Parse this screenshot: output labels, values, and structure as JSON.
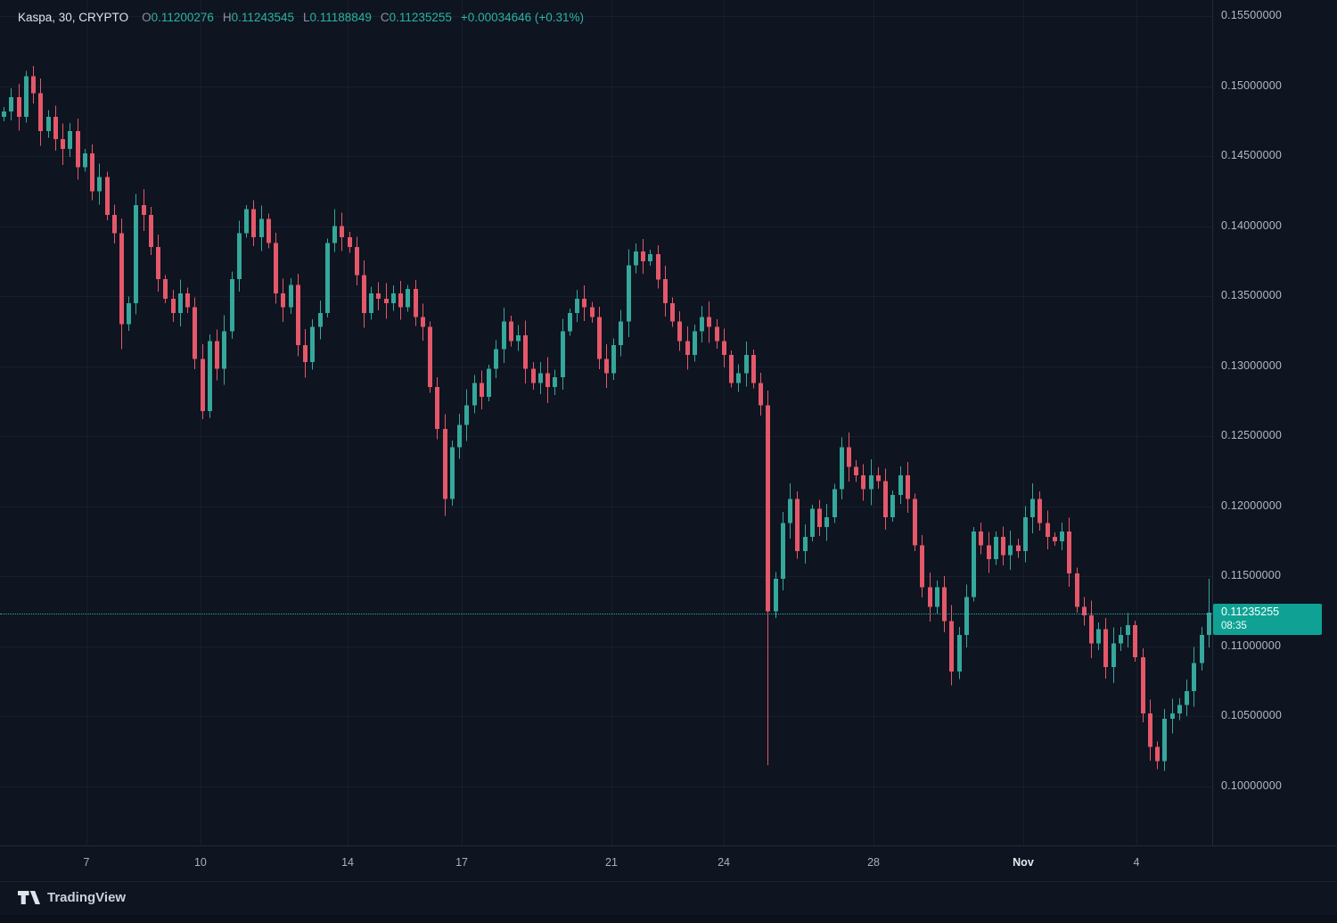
{
  "legend": {
    "title": "Kaspa, 30, CRYPTO",
    "o_label": "O",
    "o_value": "0.11200276",
    "h_label": "H",
    "h_value": "0.11243545",
    "l_label": "L",
    "l_value": "0.11188849",
    "c_label": "C",
    "c_value": "0.11235255",
    "change": "+0.00034646 (+0.31%)"
  },
  "current_price": {
    "label": "0.11235255",
    "value": 0.11235255,
    "countdown": "08:35"
  },
  "footer": {
    "brand": "TradingView"
  },
  "colors": {
    "up": "#35a79b",
    "down": "#e4586a",
    "teal": "#2bb3a3",
    "badge": "#0fa294",
    "grid": "rgba(151,166,191,0.08)",
    "axis_text": "#b2b8c5"
  },
  "chart_data": {
    "type": "candlestick",
    "symbol": "Kaspa",
    "interval": "30",
    "exchange": "CRYPTO",
    "title": "Kaspa, 30, CRYPTO",
    "ylim": [
      0.09577,
      0.15615
    ],
    "y_ticks": [
      "0.15500000",
      "0.15000000",
      "0.14500000",
      "0.14000000",
      "0.13500000",
      "0.13000000",
      "0.12500000",
      "0.12000000",
      "0.11500000",
      "0.11000000",
      "0.10500000",
      "0.10000000"
    ],
    "x_ticks": [
      {
        "label": "7",
        "pos": 0.0713
      },
      {
        "label": "10",
        "pos": 0.1654
      },
      {
        "label": "14",
        "pos": 0.2868
      },
      {
        "label": "17",
        "pos": 0.3809
      },
      {
        "label": "21",
        "pos": 0.5044
      },
      {
        "label": "24",
        "pos": 0.5971
      },
      {
        "label": "28",
        "pos": 0.7206
      },
      {
        "label": "Nov",
        "pos": 0.8441,
        "emphasis": true
      },
      {
        "label": "4",
        "pos": 0.9375
      }
    ],
    "last_price": 0.11235255,
    "first_open": 0.1478,
    "wick": 0.0009,
    "closes": [
      0.1482,
      0.1492,
      0.1478,
      0.1507,
      0.1495,
      0.1468,
      0.1478,
      0.1462,
      0.1455,
      0.1468,
      0.1442,
      0.1452,
      0.1425,
      0.1435,
      0.1408,
      0.1395,
      0.133,
      0.1345,
      0.1415,
      0.1408,
      0.1385,
      0.1362,
      0.1348,
      0.1338,
      0.1352,
      0.1342,
      0.1305,
      0.1268,
      0.1318,
      0.1298,
      0.1325,
      0.1362,
      0.1395,
      0.1412,
      0.1392,
      0.1405,
      0.1388,
      0.1352,
      0.1342,
      0.1358,
      0.1315,
      0.1303,
      0.1328,
      0.1338,
      0.1388,
      0.14,
      0.1392,
      0.1385,
      0.1365,
      0.1338,
      0.1352,
      0.1348,
      0.1345,
      0.1352,
      0.1342,
      0.1355,
      0.1335,
      0.1328,
      0.1285,
      0.1255,
      0.1205,
      0.1242,
      0.1258,
      0.1272,
      0.1288,
      0.1278,
      0.1298,
      0.1312,
      0.1332,
      0.1318,
      0.1322,
      0.1298,
      0.1288,
      0.1295,
      0.1285,
      0.1292,
      0.1325,
      0.1338,
      0.1348,
      0.1342,
      0.1335,
      0.1305,
      0.1295,
      0.1315,
      0.1332,
      0.1372,
      0.1382,
      0.1375,
      0.138,
      0.1362,
      0.1345,
      0.1332,
      0.1318,
      0.1308,
      0.1325,
      0.1335,
      0.1328,
      0.1318,
      0.1308,
      0.1288,
      0.1295,
      0.1308,
      0.1288,
      0.1272,
      0.1125,
      0.1148,
      0.1188,
      0.1205,
      0.1168,
      0.1178,
      0.1198,
      0.1185,
      0.1192,
      0.1212,
      0.1242,
      0.1228,
      0.1222,
      0.1212,
      0.1222,
      0.1218,
      0.1192,
      0.1208,
      0.1222,
      0.1205,
      0.1172,
      0.1142,
      0.1128,
      0.1142,
      0.1118,
      0.1082,
      0.1108,
      0.1135,
      0.1182,
      0.1172,
      0.1162,
      0.1178,
      0.1165,
      0.1172,
      0.1168,
      0.1192,
      0.1205,
      0.1188,
      0.1178,
      0.1175,
      0.1182,
      0.1152,
      0.1128,
      0.1122,
      0.1102,
      0.1112,
      0.1085,
      0.1102,
      0.1108,
      0.1115,
      0.1092,
      0.1052,
      0.1028,
      0.1018,
      0.1048,
      0.1052,
      0.1058,
      0.1068,
      0.1088,
      0.1108,
      0.1124
    ],
    "wick_overrides": [
      {
        "i": 16,
        "l": 0.1312
      },
      {
        "i": 27,
        "l": 0.1262
      },
      {
        "i": 45,
        "h": 0.1412
      },
      {
        "i": 60,
        "l": 0.1193
      },
      {
        "i": 104,
        "l": 0.1015
      },
      {
        "i": 129,
        "l": 0.1072
      },
      {
        "i": 157,
        "l": 0.1012
      },
      {
        "i": 164,
        "h": 0.1148
      }
    ]
  }
}
